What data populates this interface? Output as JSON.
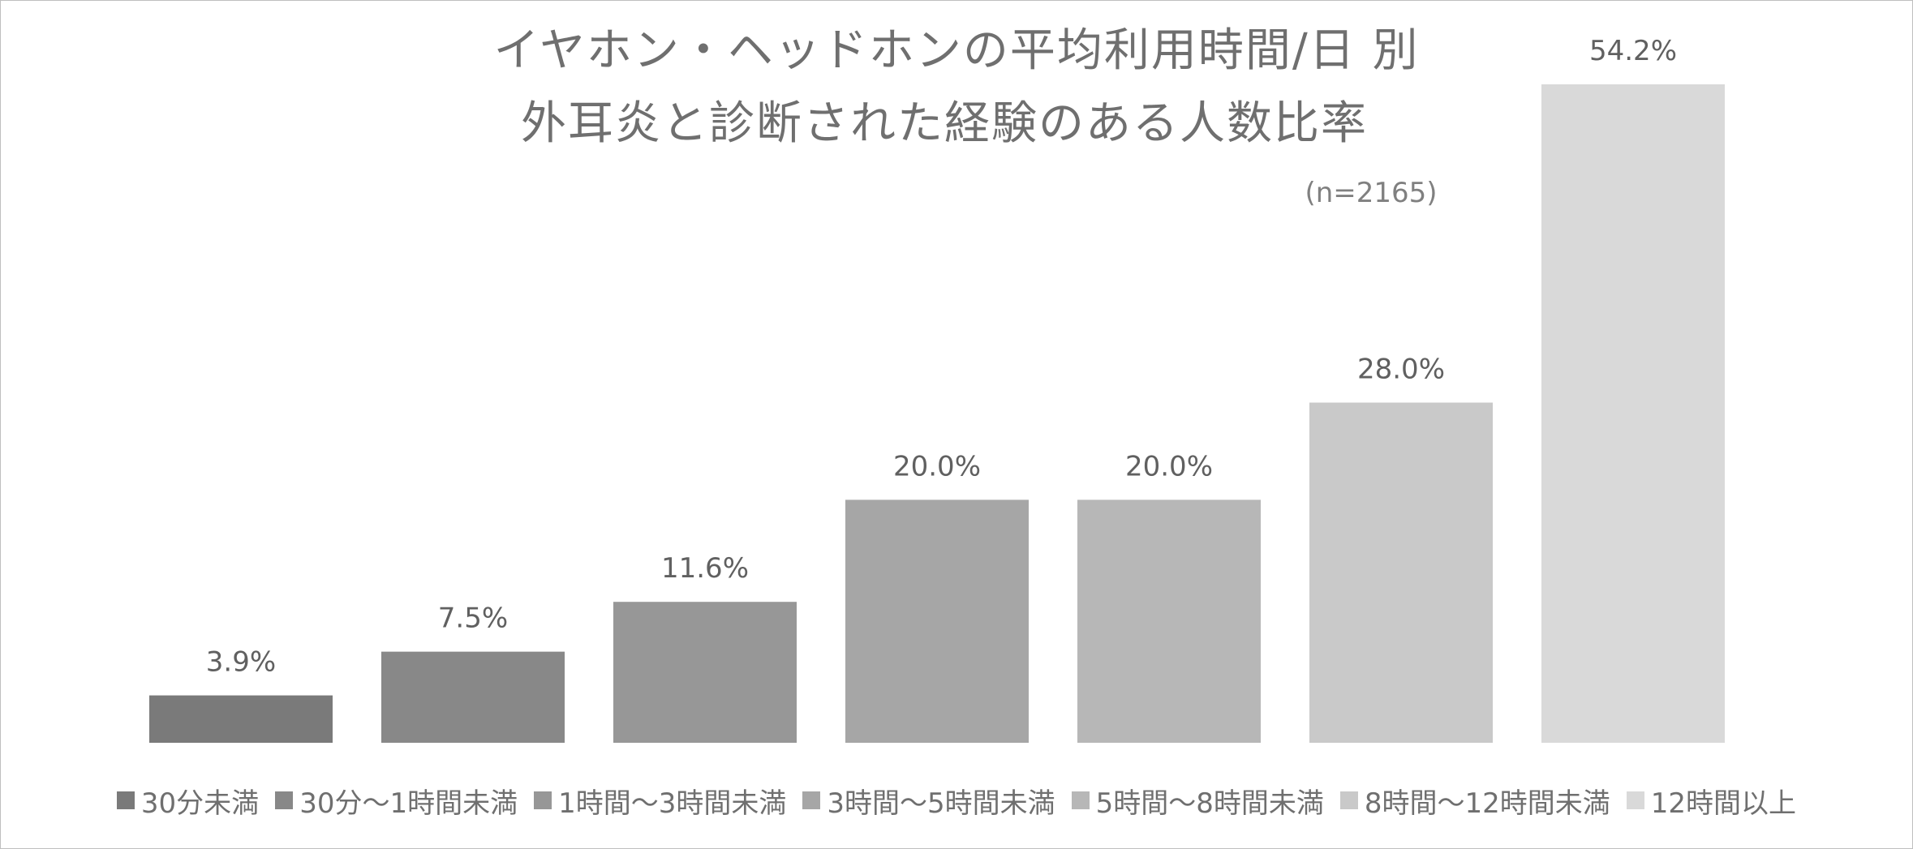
{
  "chart_data": {
    "type": "bar",
    "title_lines": [
      "イヤホン・ヘッドホンの平均利用時間/日 別",
      "外耳炎と診断された経験のある人数比率"
    ],
    "subtitle": "(n=2165)",
    "categories": [
      "30分未満",
      "30分～1時間未満",
      "1時間～3時間未満",
      "3時間～5時間未満",
      "5時間～8時間未満",
      "8時間～12時間未満",
      "12時間以上"
    ],
    "values": [
      3.9,
      7.5,
      11.6,
      20.0,
      20.0,
      28.0,
      54.2
    ],
    "data_labels": [
      "3.9%",
      "7.5%",
      "11.6%",
      "20.0%",
      "20.0%",
      "28.0%",
      "54.2%"
    ],
    "unit": "%",
    "colors": [
      "#7a7a7a",
      "#888888",
      "#979797",
      "#a6a6a6",
      "#b7b7b7",
      "#c9c9c9",
      "#d9d9d9"
    ],
    "ylim": [
      0,
      54.2
    ],
    "grid": false,
    "axes_visible": false,
    "legend_position": "bottom"
  }
}
